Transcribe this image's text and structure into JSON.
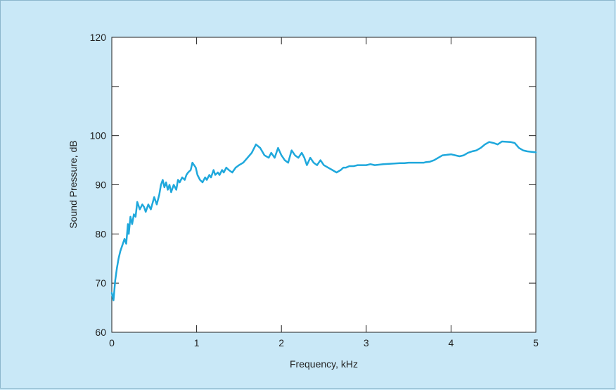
{
  "chart_data": {
    "type": "line",
    "title": "",
    "xlabel": "Frequency, kHz",
    "ylabel": "Sound Pressure, dB",
    "xlim": [
      0,
      5
    ],
    "ylim": [
      60,
      120
    ],
    "xticks": [
      0,
      1,
      2,
      3,
      4,
      5
    ],
    "yticks": [
      60,
      70,
      80,
      90,
      100,
      110,
      120
    ],
    "xtick_labels": [
      "0",
      "1",
      "2",
      "3",
      "4",
      "5"
    ],
    "ytick_labels": [
      "60",
      "70",
      "80",
      "90",
      "100",
      "",
      "120"
    ],
    "grid": false,
    "legend": "none",
    "colors": {
      "line": "#1fa8dc",
      "background": "#c9e8f7",
      "plot_area": "#ffffff"
    },
    "series": [
      {
        "x": [
          0.0,
          0.02,
          0.04,
          0.06,
          0.08,
          0.1,
          0.12,
          0.15,
          0.17,
          0.19,
          0.2,
          0.22,
          0.24,
          0.26,
          0.28,
          0.3,
          0.33,
          0.36,
          0.38,
          0.4,
          0.43,
          0.46,
          0.5,
          0.53,
          0.56,
          0.58,
          0.6,
          0.62,
          0.64,
          0.66,
          0.68,
          0.7,
          0.73,
          0.76,
          0.78,
          0.8,
          0.83,
          0.86,
          0.88,
          0.9,
          0.93,
          0.95,
          0.97,
          0.99,
          1.01,
          1.04,
          1.07,
          1.1,
          1.12,
          1.15,
          1.17,
          1.2,
          1.22,
          1.25,
          1.27,
          1.3,
          1.32,
          1.35,
          1.38,
          1.42,
          1.46,
          1.5,
          1.55,
          1.6,
          1.65,
          1.7,
          1.75,
          1.8,
          1.85,
          1.88,
          1.92,
          1.96,
          2.0,
          2.04,
          2.08,
          2.12,
          2.16,
          2.2,
          2.24,
          2.27,
          2.3,
          2.34,
          2.38,
          2.42,
          2.46,
          2.5,
          2.55,
          2.6,
          2.65,
          2.7,
          2.73,
          2.76,
          2.8,
          2.85,
          2.9,
          2.95,
          3.0,
          3.05,
          3.1,
          3.2,
          3.3,
          3.4,
          3.45,
          3.5,
          3.55,
          3.6,
          3.65,
          3.68,
          3.7,
          3.75,
          3.8,
          3.85,
          3.9,
          4.0,
          4.05,
          4.1,
          4.15,
          4.2,
          4.25,
          4.3,
          4.35,
          4.4,
          4.45,
          4.5,
          4.55,
          4.6,
          4.7,
          4.75,
          4.8,
          4.85,
          4.9,
          4.95,
          5.0
        ],
        "y": [
          68.0,
          66.5,
          70.5,
          73.0,
          75.0,
          76.5,
          77.5,
          79.0,
          78.0,
          82.0,
          80.0,
          83.5,
          82.0,
          84.0,
          83.5,
          86.5,
          85.0,
          86.0,
          85.5,
          84.5,
          86.0,
          85.0,
          87.5,
          86.0,
          88.0,
          90.0,
          91.0,
          89.5,
          90.5,
          89.0,
          90.0,
          88.5,
          90.0,
          89.0,
          91.0,
          90.5,
          91.5,
          91.0,
          92.0,
          92.5,
          93.0,
          94.5,
          94.0,
          93.5,
          92.0,
          91.0,
          90.5,
          91.5,
          91.0,
          92.0,
          91.5,
          93.0,
          92.0,
          92.5,
          92.0,
          93.0,
          92.5,
          93.5,
          93.0,
          92.5,
          93.5,
          94.0,
          94.5,
          95.5,
          96.5,
          98.2,
          97.5,
          96.0,
          95.5,
          96.5,
          95.5,
          97.5,
          96.0,
          95.0,
          94.5,
          97.0,
          96.0,
          95.5,
          96.5,
          95.5,
          94.0,
          95.5,
          94.5,
          94.0,
          95.0,
          94.0,
          93.5,
          93.0,
          92.5,
          93.0,
          93.5,
          93.5,
          93.8,
          93.8,
          94.0,
          94.0,
          94.0,
          94.2,
          94.0,
          94.2,
          94.3,
          94.4,
          94.4,
          94.5,
          94.5,
          94.5,
          94.5,
          94.5,
          94.6,
          94.7,
          95.0,
          95.5,
          96.0,
          96.2,
          96.0,
          95.8,
          96.0,
          96.5,
          96.8,
          97.0,
          97.5,
          98.2,
          98.7,
          98.5,
          98.2,
          98.8,
          98.7,
          98.5,
          97.5,
          97.0,
          96.8,
          96.7,
          96.6
        ]
      }
    ]
  }
}
